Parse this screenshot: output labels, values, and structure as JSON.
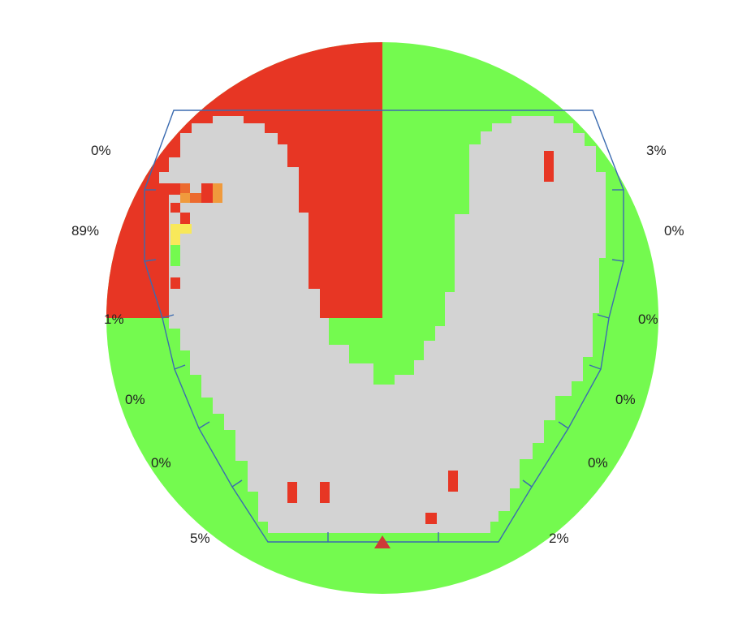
{
  "colors": {
    "background": "#ffffff",
    "in_zone": "#74fa4f",
    "out_zone": "#e73624",
    "tissue": "#d3d3d3",
    "hot_high": "#e73624",
    "hot_mid": "#ec6a2e",
    "hot_warm": "#f09a3c",
    "hot_yellow": "#f8e85a",
    "outline": "#3b6bb0",
    "marker": "#cd3a37"
  },
  "sector_labels": [
    {
      "id": "left-1",
      "text": "0%"
    },
    {
      "id": "left-2",
      "text": "89%"
    },
    {
      "id": "left-3",
      "text": "1%"
    },
    {
      "id": "left-4",
      "text": "0%"
    },
    {
      "id": "left-5",
      "text": "0%"
    },
    {
      "id": "left-6",
      "text": "5%"
    },
    {
      "id": "right-1",
      "text": "3%"
    },
    {
      "id": "right-2",
      "text": "0%"
    },
    {
      "id": "right-3",
      "text": "0%"
    },
    {
      "id": "right-4",
      "text": "0%"
    },
    {
      "id": "right-5",
      "text": "0%"
    },
    {
      "id": "right-6",
      "text": "2%"
    }
  ],
  "marker": "triangle-marker"
}
